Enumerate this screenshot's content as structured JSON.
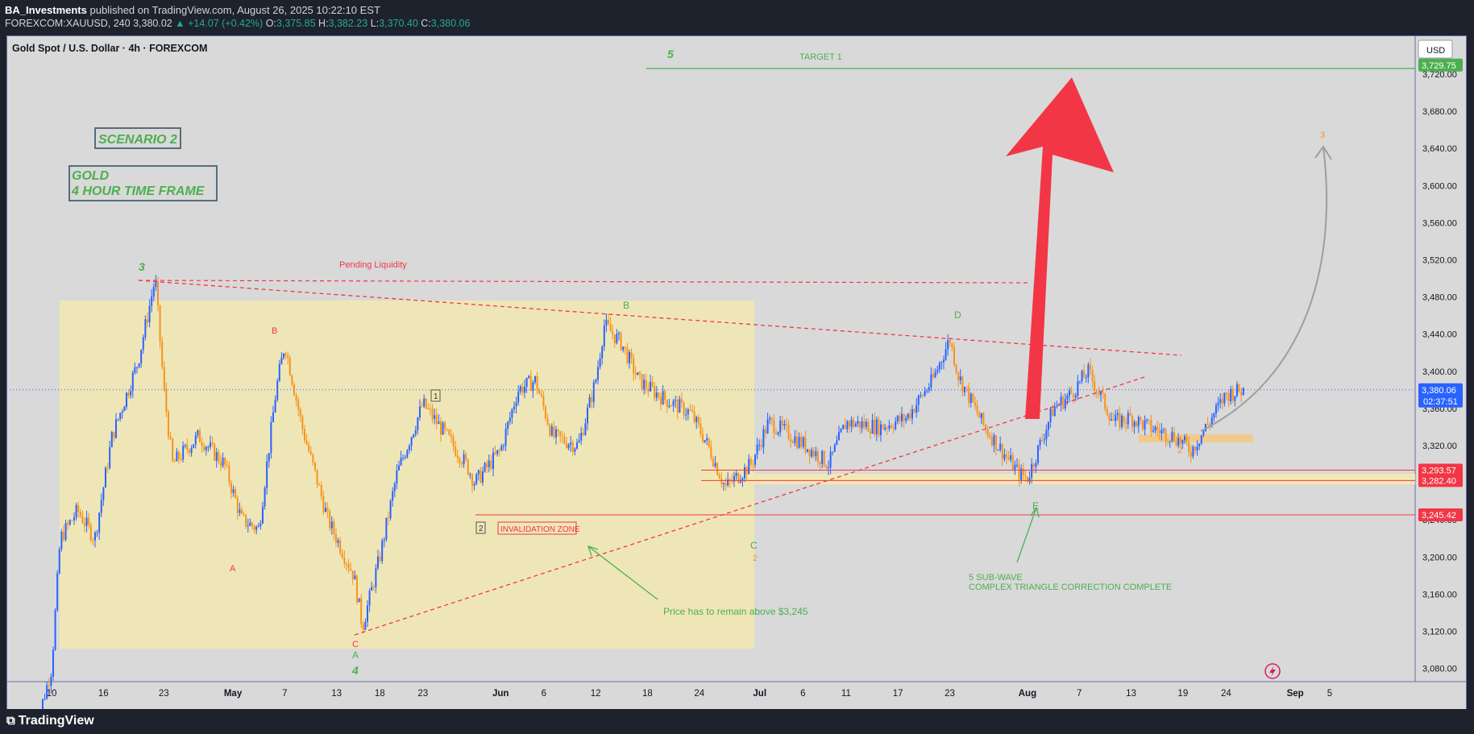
{
  "header": {
    "publisher": "BA_Investments",
    "published_text": "published on TradingView.com, August 26, 2025 10:22:10 EST",
    "symbol": "FOREXCOM:XAUUSD, 240",
    "last": "3,380.02",
    "change": "▲ +14.07 (+0.42%)",
    "o_label": "O:",
    "o": "3,375.85",
    "h_label": "H:",
    "h": "3,382.23",
    "l_label": "L:",
    "l": "3,370.40",
    "c_label": "C:",
    "c": "3,380.06"
  },
  "chart_title": "Gold Spot / U.S. Dollar · 4h · FOREXCOM",
  "currency": "USD",
  "footer": {
    "brand": "TradingView",
    "logo": "tradingview-logo"
  },
  "colors": {
    "up": "#2962ff",
    "down": "#f7931a",
    "green": "#4caf50",
    "red": "#f23645",
    "zone": "#f2e8b0"
  },
  "chart_data": {
    "type": "candlestick",
    "title": "Gold Spot / U.S. Dollar · 4h · FOREXCOM",
    "ylim": [
      3060,
      3750
    ],
    "x_labels": [
      "10",
      "16",
      "23",
      "May",
      "7",
      "13",
      "18",
      "23",
      "Jun",
      "6",
      "12",
      "18",
      "24",
      "Jul",
      "6",
      "11",
      "17",
      "23",
      "Aug",
      "7",
      "13",
      "19",
      "24",
      "Sep",
      "5"
    ],
    "x_dates": [
      "2025-04-10",
      "2025-04-16",
      "2025-04-23",
      "2025-05-01",
      "2025-05-07",
      "2025-05-13",
      "2025-05-18",
      "2025-05-23",
      "2025-06-01",
      "2025-06-06",
      "2025-06-12",
      "2025-06-18",
      "2025-06-24",
      "2025-07-01",
      "2025-07-06",
      "2025-07-11",
      "2025-07-17",
      "2025-07-23",
      "2025-08-01",
      "2025-08-07",
      "2025-08-13",
      "2025-08-19",
      "2025-08-24",
      "2025-09-01",
      "2025-09-05"
    ],
    "y_ticks": [
      "3,080.00",
      "3,120.00",
      "3,160.00",
      "3,200.00",
      "3,240.00",
      "3,280.00",
      "3,320.00",
      "3,360.00",
      "3,400.00",
      "3,440.00",
      "3,480.00",
      "3,520.00",
      "3,560.00",
      "3,600.00",
      "3,640.00",
      "3,680.00",
      "3,720.00"
    ],
    "y_tick_values": [
      3080,
      3120,
      3160,
      3200,
      3240,
      3280,
      3320,
      3360,
      3400,
      3440,
      3480,
      3520,
      3560,
      3600,
      3640,
      3680,
      3720
    ],
    "price_path": [
      [
        "2025-04-08",
        3010
      ],
      [
        "2025-04-10",
        3080
      ],
      [
        "2025-04-11",
        3220
      ],
      [
        "2025-04-13",
        3250
      ],
      [
        "2025-04-15",
        3220
      ],
      [
        "2025-04-17",
        3330
      ],
      [
        "2025-04-20",
        3410
      ],
      [
        "2025-04-22",
        3500
      ],
      [
        "2025-04-23",
        3380
      ],
      [
        "2025-04-24",
        3300
      ],
      [
        "2025-04-27",
        3330
      ],
      [
        "2025-04-30",
        3300
      ],
      [
        "2025-05-02",
        3240
      ],
      [
        "2025-05-04",
        3230
      ],
      [
        "2025-05-06",
        3380
      ],
      [
        "2025-05-07",
        3430
      ],
      [
        "2025-05-09",
        3340
      ],
      [
        "2025-05-12",
        3240
      ],
      [
        "2025-05-15",
        3180
      ],
      [
        "2025-05-16",
        3125
      ],
      [
        "2025-05-18",
        3200
      ],
      [
        "2025-05-20",
        3290
      ],
      [
        "2025-05-23",
        3365
      ],
      [
        "2025-05-25",
        3340
      ],
      [
        "2025-05-28",
        3300
      ],
      [
        "2025-05-29",
        3280
      ],
      [
        "2025-06-01",
        3315
      ],
      [
        "2025-06-03",
        3380
      ],
      [
        "2025-06-05",
        3390
      ],
      [
        "2025-06-07",
        3330
      ],
      [
        "2025-06-10",
        3320
      ],
      [
        "2025-06-12",
        3390
      ],
      [
        "2025-06-13",
        3450
      ],
      [
        "2025-06-15",
        3430
      ],
      [
        "2025-06-17",
        3390
      ],
      [
        "2025-06-20",
        3370
      ],
      [
        "2025-06-23",
        3355
      ],
      [
        "2025-06-25",
        3320
      ],
      [
        "2025-06-27",
        3275
      ],
      [
        "2025-06-30",
        3300
      ],
      [
        "2025-07-02",
        3345
      ],
      [
        "2025-07-04",
        3335
      ],
      [
        "2025-07-07",
        3315
      ],
      [
        "2025-07-09",
        3300
      ],
      [
        "2025-07-11",
        3345
      ],
      [
        "2025-07-15",
        3340
      ],
      [
        "2025-07-18",
        3350
      ],
      [
        "2025-07-21",
        3390
      ],
      [
        "2025-07-23",
        3435
      ],
      [
        "2025-07-24",
        3395
      ],
      [
        "2025-07-27",
        3340
      ],
      [
        "2025-07-29",
        3315
      ],
      [
        "2025-07-31",
        3290
      ],
      [
        "2025-08-01",
        3285
      ],
      [
        "2025-08-04",
        3360
      ],
      [
        "2025-08-06",
        3375
      ],
      [
        "2025-08-08",
        3400
      ],
      [
        "2025-08-11",
        3345
      ],
      [
        "2025-08-13",
        3350
      ],
      [
        "2025-08-15",
        3340
      ],
      [
        "2025-08-18",
        3330
      ],
      [
        "2025-08-20",
        3315
      ],
      [
        "2025-08-22",
        3345
      ],
      [
        "2025-08-24",
        3375
      ],
      [
        "2025-08-26",
        3380
      ]
    ],
    "current_price": "3,380.06",
    "countdown": "02:37:51",
    "price_tags": [
      {
        "label": "3,729.75",
        "value": 3729.75,
        "color": "#4caf50"
      },
      {
        "label": "3,293.57",
        "value": 3293.57,
        "color": "#f23645"
      },
      {
        "label": "3,282.40",
        "value": 3282.4,
        "color": "#f23645"
      },
      {
        "label": "3,245.42",
        "value": 3245.42,
        "color": "#f23645"
      }
    ],
    "annotations": {
      "scenario": "SCENARIO 2",
      "gold_line1": "GOLD",
      "gold_line2": "4 HOUR TIME FRAME",
      "target": "TARGET 1",
      "wave5": "5",
      "wave3": "3",
      "wave3_orange": "3",
      "pending": "Pending Liquidity",
      "B_red": "B",
      "B_green": "B",
      "A_red": "A",
      "C_red": "C",
      "A_green": "A",
      "wave4": "4",
      "D_green": "D",
      "E_green": "E",
      "C_green": "C",
      "two_orange_1": "2",
      "two_orange_2": "2",
      "box1": "1",
      "box2": "2",
      "invalidation": "INVALIDATION ZONE",
      "price_note": "Price has to remain above $3,245",
      "sub_wave_1": "5 SUB-WAVE",
      "sub_wave_2": "COMPLEX TRIANGLE CORRECTION COMPLETE"
    }
  }
}
